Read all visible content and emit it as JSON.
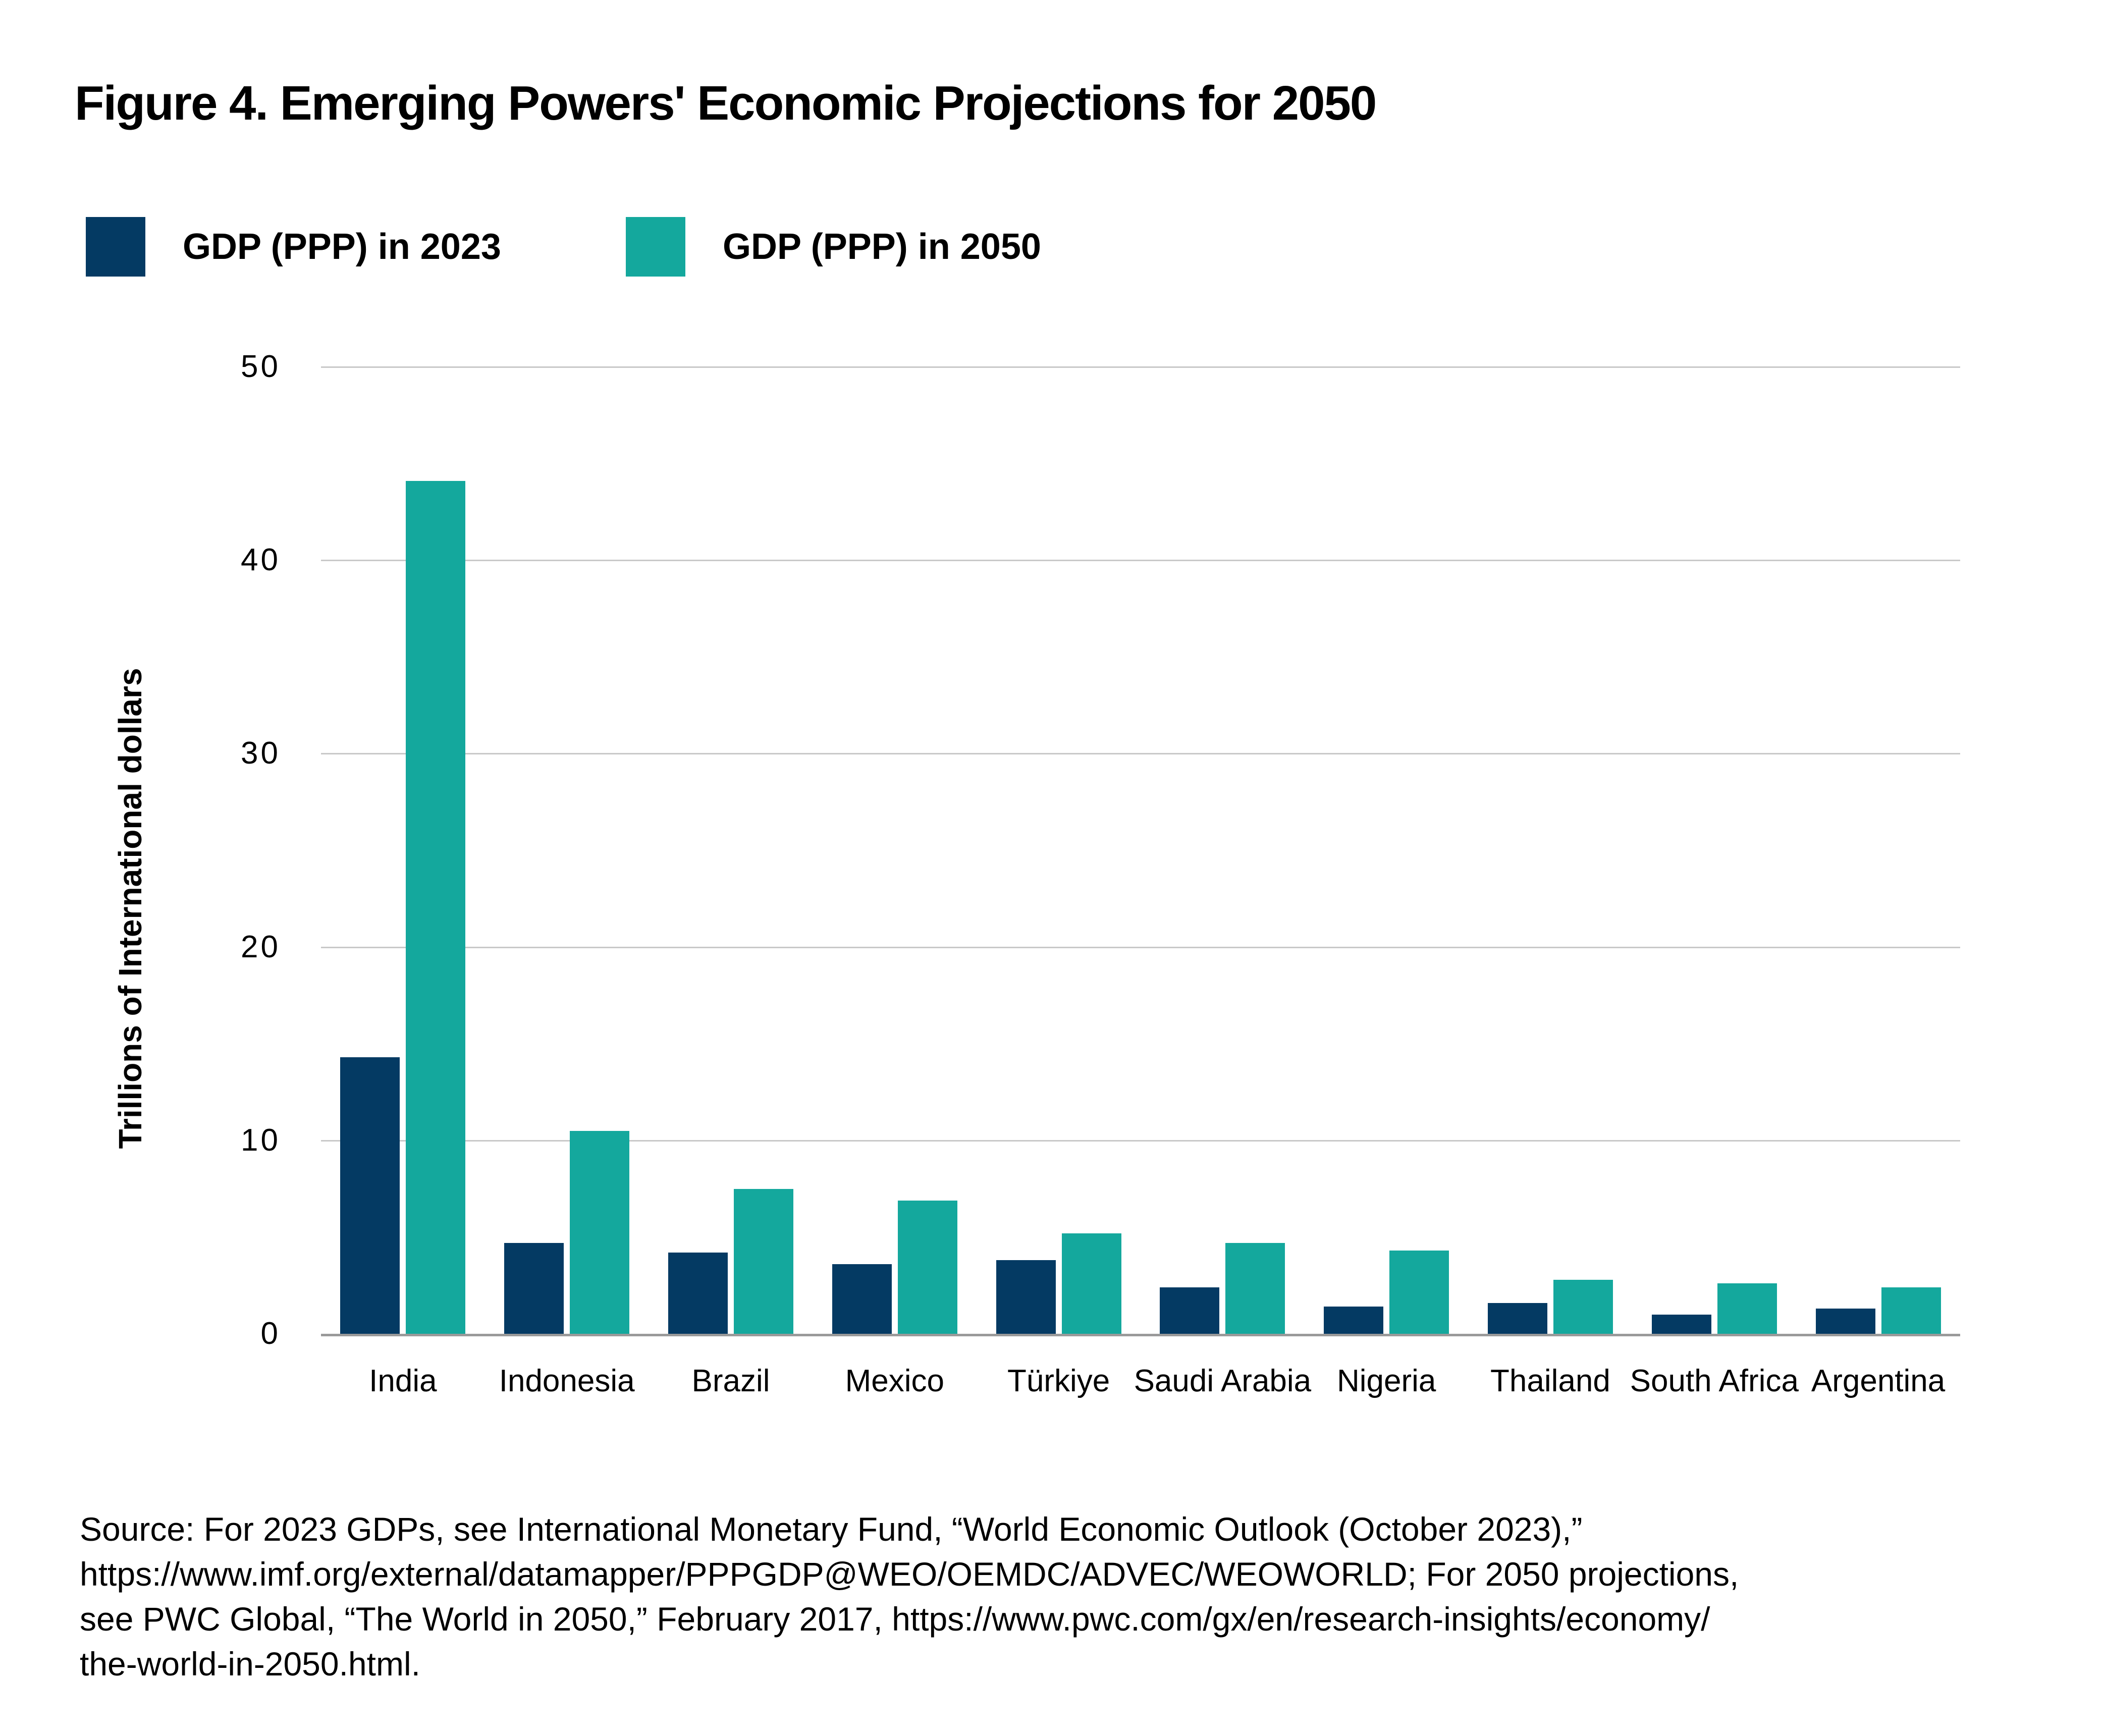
{
  "title": "Figure 4. Emerging Powers' Economic Projections for 2050",
  "legend": [
    {
      "label": "GDP (PPP) in 2023",
      "color": "#043a63"
    },
    {
      "label": "GDP (PPP) in 2050",
      "color": "#14a89d"
    }
  ],
  "source_lines": [
    "Source: For 2023 GDPs, see International Monetary Fund, “World Economic Outlook (October 2023),”",
    "https://www.imf.org/external/datamapper/PPPGDP@WEO/OEMDC/ADVEC/WEOWORLD; For 2050 projections,",
    "see PWC Global, “The World in 2050,” February 2017, https://www.pwc.com/gx/en/research-insights/economy/",
    "the-world-in-2050.html."
  ],
  "chart_data": {
    "type": "bar",
    "categories": [
      "India",
      "Indonesia",
      "Brazil",
      "Mexico",
      "Türkiye",
      "Saudi Arabia",
      "Nigeria",
      "Thailand",
      "South Africa",
      "Argentina"
    ],
    "series": [
      {
        "name": "GDP (PPP) in 2023",
        "color": "#043a63",
        "values": [
          14.3,
          4.7,
          4.2,
          3.6,
          3.8,
          2.4,
          1.4,
          1.6,
          1.0,
          1.3
        ]
      },
      {
        "name": "GDP (PPP) in 2050",
        "color": "#14a89d",
        "values": [
          44.1,
          10.5,
          7.5,
          6.9,
          5.2,
          4.7,
          4.3,
          2.8,
          2.6,
          2.4
        ]
      }
    ],
    "xlabel": "",
    "ylabel": "Trillions of International dollars",
    "ylim": [
      0,
      50
    ],
    "yticks": [
      0,
      10,
      20,
      30,
      40,
      50
    ],
    "grid": true,
    "legend_position": "top-left"
  }
}
